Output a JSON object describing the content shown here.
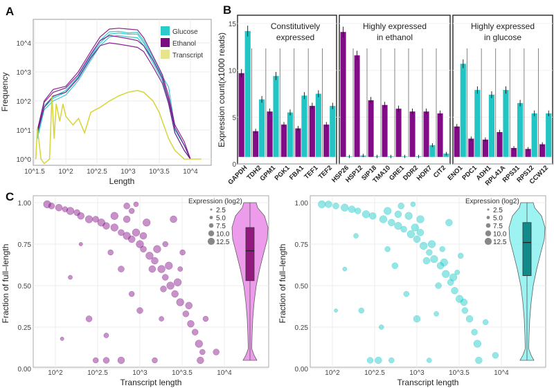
{
  "colors": {
    "glucose": "#22c4c4",
    "ethanol": "#800d86",
    "transcript": "#d4d12c",
    "glucose_legend": "#2ccaca",
    "ethanol_legend": "#7a0e80",
    "transcript_legend": "#e6e48c"
  },
  "chart_data": [
    {
      "panel": "A",
      "type": "line",
      "xlabel": "Length",
      "ylabel": "Frequency",
      "x_scale": "log",
      "y_scale": "log",
      "xlim": [
        31,
        20000
      ],
      "ylim": [
        0.6,
        60000
      ],
      "x_ticks": [
        "10^1.5",
        "10^2",
        "10^2.5",
        "10^3",
        "10^3.5",
        "10^4"
      ],
      "x_tick_values": [
        31.6,
        100,
        316,
        1000,
        3162,
        10000
      ],
      "y_ticks": [
        "10^0",
        "10^1",
        "10^2",
        "10^3",
        "10^4"
      ],
      "y_tick_values": [
        1,
        10,
        100,
        1000,
        10000
      ],
      "grid": true,
      "legend": {
        "placement": "top-right",
        "entries": [
          "Glucose",
          "Ethanol",
          "Transcript"
        ]
      },
      "x": [
        35,
        45,
        63,
        100,
        158,
        251,
        355,
        501,
        708,
        1000,
        1413,
        1778,
        2512,
        3548,
        4467,
        5623,
        7943,
        10000
      ],
      "series": [
        {
          "name": "Glucose",
          "values": [
            6,
            60,
            125,
            200,
            630,
            3200,
            10000,
            20000,
            22000,
            20000,
            20000,
            10000,
            2500,
            630,
            100,
            10,
            3,
            1
          ]
        },
        {
          "name": "Glucose",
          "values": [
            5,
            50,
            100,
            160,
            500,
            2500,
            8000,
            16000,
            18000,
            16000,
            15000,
            8000,
            2000,
            500,
            80,
            8,
            2,
            1
          ]
        },
        {
          "name": "Glucose",
          "values": [
            7,
            70,
            140,
            230,
            700,
            3600,
            12000,
            24000,
            25000,
            22000,
            23000,
            12000,
            3000,
            700,
            300,
            12,
            3,
            1
          ]
        },
        {
          "name": "Ethanol",
          "values": [
            10,
            100,
            250,
            320,
            1000,
            5000,
            16000,
            30000,
            32000,
            30000,
            28000,
            15000,
            3500,
            800,
            150,
            15,
            4,
            1
          ]
        },
        {
          "name": "Ethanol",
          "values": [
            9,
            90,
            200,
            280,
            800,
            4000,
            12000,
            18000,
            16000,
            14000,
            12000,
            8000,
            2500,
            600,
            110,
            12,
            3,
            1
          ]
        },
        {
          "name": "Ethanol",
          "values": [
            8,
            60,
            150,
            200,
            600,
            3000,
            8000,
            10000,
            9000,
            8000,
            7000,
            5000,
            1500,
            400,
            80,
            8,
            2,
            1
          ]
        },
        {
          "name": "Transcript",
          "x": [
            33,
            35,
            40,
            45,
            55,
            60,
            65,
            70,
            80,
            90,
            100,
            130,
            160,
            200,
            251,
            300,
            355,
            501,
            708,
            1000,
            1413,
            1778,
            2512,
            3162,
            3548,
            4467,
            5623,
            7943,
            10000,
            15000
          ],
          "values": [
            1,
            12,
            1,
            0.7,
            1,
            150,
            5,
            80,
            20,
            80,
            30,
            15,
            25,
            8,
            40,
            50,
            60,
            100,
            150,
            200,
            230,
            200,
            100,
            40,
            20,
            5,
            2,
            1,
            1,
            1
          ]
        }
      ]
    },
    {
      "panel": "B",
      "type": "bar",
      "ylabel": "Expression count(x1000 reads)",
      "ylim": [
        0,
        15.5
      ],
      "y_ticks": [
        0,
        5,
        10,
        15
      ],
      "series_order": [
        "Ethanol",
        "Glucose"
      ],
      "facets": [
        {
          "title": [
            "Constitutively",
            "expressed"
          ],
          "genes": [
            {
              "gene": "GAPDH",
              "ethanol": 9.7,
              "glucose": 14.2
            },
            {
              "gene": "TDH2",
              "ethanol": 3.5,
              "glucose": 6.9
            },
            {
              "gene": "GPM1",
              "ethanol": 5.6,
              "glucose": 9.4
            },
            {
              "gene": "PGK1",
              "ethanol": 4.2,
              "glucose": 5.5
            },
            {
              "gene": "FBA1",
              "ethanol": 3.8,
              "glucose": 7.3
            },
            {
              "gene": "TEF1",
              "ethanol": 6.2,
              "glucose": 7.5
            },
            {
              "gene": "TEF2",
              "ethanol": 4.2,
              "glucose": 6.2
            }
          ]
        },
        {
          "title": [
            "Highly expressed",
            "in ethanol"
          ],
          "genes": [
            {
              "gene": "HSP26",
              "ethanol": 14.1,
              "glucose": 0.8
            },
            {
              "gene": "HSP12",
              "ethanol": 11.6,
              "glucose": 0.9
            },
            {
              "gene": "SIP18",
              "ethanol": 6.8,
              "glucose": 0.8
            },
            {
              "gene": "TMA10",
              "ethanol": 6.3,
              "glucose": 0.8
            },
            {
              "gene": "GRE1",
              "ethanol": 5.9,
              "glucose": 0.8
            },
            {
              "gene": "DDR2",
              "ethanol": 5.6,
              "glucose": 0.8
            },
            {
              "gene": "HOR7",
              "ethanol": 5.6,
              "glucose": 2.0
            },
            {
              "gene": "CIT2",
              "ethanol": 5.4,
              "glucose": 1.1
            }
          ]
        },
        {
          "title": [
            "Highly expressed",
            "in glucose"
          ],
          "genes": [
            {
              "gene": "ENO1",
              "ethanol": 4.0,
              "glucose": 10.7
            },
            {
              "gene": "PDC1",
              "ethanol": 2.7,
              "glucose": 7.9
            },
            {
              "gene": "ADH1",
              "ethanol": 2.6,
              "glucose": 7.4
            },
            {
              "gene": "RPL41A",
              "ethanol": 3.4,
              "glucose": 7.9
            },
            {
              "gene": "RPS31",
              "ethanol": 1.7,
              "glucose": 6.5
            },
            {
              "gene": "RPS12",
              "ethanol": 1.6,
              "glucose": 5.4
            },
            {
              "gene": "CCW12",
              "ethanol": 2.1,
              "glucose": 5.4
            }
          ]
        }
      ]
    },
    {
      "panel": "C-ethanol",
      "type": "scatter",
      "xlabel": "Transcript length",
      "ylabel": "Fraction of full–length",
      "x_scale": "log",
      "x_ticks": [
        "10^2",
        "10^2.5",
        "10^3",
        "10^3.5",
        "10^4"
      ],
      "x_tick_values": [
        100,
        316,
        1000,
        3162,
        10000
      ],
      "y_ticks": [
        "0.00",
        "0.25",
        "0.50",
        "0.75",
        "1.00"
      ],
      "y_tick_values": [
        0,
        0.25,
        0.5,
        0.75,
        1
      ],
      "xlim": [
        55,
        30000
      ],
      "ylim": [
        -0.01,
        1.04
      ],
      "grid": true,
      "size_legend": {
        "title": "Expression (log2)",
        "values": [
          "2.5",
          "5.0",
          "7.5",
          "10.0",
          "12.5"
        ],
        "placement": "top-right"
      },
      "violin": {
        "q1": 0.53,
        "median": 0.71,
        "q3": 0.85,
        "min": 0.05,
        "max": 1.0
      },
      "points": [
        [
          80,
          0.99,
          12
        ],
        [
          90,
          0.98,
          10
        ],
        [
          110,
          0.97,
          11
        ],
        [
          130,
          0.96,
          9
        ],
        [
          150,
          0.95,
          12
        ],
        [
          180,
          0.94,
          10
        ],
        [
          200,
          0.92,
          11
        ],
        [
          250,
          0.9,
          12
        ],
        [
          300,
          0.9,
          10
        ],
        [
          350,
          0.88,
          12
        ],
        [
          400,
          0.86,
          11
        ],
        [
          500,
          0.85,
          12
        ],
        [
          600,
          0.82,
          10
        ],
        [
          700,
          0.8,
          12
        ],
        [
          800,
          0.78,
          11
        ],
        [
          1000,
          0.75,
          12
        ],
        [
          1100,
          0.72,
          10
        ],
        [
          1300,
          0.68,
          12
        ],
        [
          1500,
          0.65,
          11
        ],
        [
          1800,
          0.6,
          12
        ],
        [
          2000,
          0.55,
          10
        ],
        [
          2300,
          0.5,
          12
        ],
        [
          2600,
          0.45,
          11
        ],
        [
          3000,
          0.4,
          12
        ],
        [
          3500,
          0.33,
          10
        ],
        [
          4000,
          0.27,
          11
        ],
        [
          4500,
          0.22,
          10
        ],
        [
          5000,
          0.15,
          12
        ],
        [
          5500,
          0.1,
          9
        ],
        [
          5200,
          0.05,
          11
        ],
        [
          800,
          0.95,
          9
        ],
        [
          900,
          0.99,
          8
        ],
        [
          700,
          0.98,
          10
        ],
        [
          300,
          0.05,
          9
        ],
        [
          400,
          0.05,
          10
        ],
        [
          600,
          0.05,
          11
        ],
        [
          1500,
          0.05,
          9
        ],
        [
          250,
          0.3,
          10
        ],
        [
          400,
          0.2,
          8
        ],
        [
          150,
          0.55,
          7
        ],
        [
          120,
          0.18,
          6
        ],
        [
          1200,
          0.88,
          12
        ],
        [
          2000,
          0.75,
          9
        ],
        [
          3000,
          0.6,
          8
        ],
        [
          600,
          0.6,
          10
        ],
        [
          450,
          0.7,
          9
        ],
        [
          1000,
          0.35,
          10
        ],
        [
          200,
          0.75,
          6
        ],
        [
          800,
          0.45,
          9
        ],
        [
          1800,
          0.3,
          8
        ],
        [
          8000,
          0.1,
          10
        ],
        [
          6000,
          0.3,
          9
        ],
        [
          2500,
          0.9,
          11
        ],
        [
          3200,
          0.7,
          9
        ],
        [
          1600,
          0.72,
          12
        ],
        [
          900,
          0.82,
          12
        ],
        [
          1400,
          0.6,
          11
        ],
        [
          2200,
          0.62,
          12
        ],
        [
          2800,
          0.52,
          12
        ],
        [
          3800,
          0.38,
          11
        ],
        [
          700,
          0.9,
          11
        ],
        [
          500,
          0.92,
          12
        ],
        [
          1100,
          0.8,
          11
        ],
        [
          1900,
          0.48,
          10
        ]
      ]
    },
    {
      "panel": "C-glucose",
      "type": "scatter",
      "xlabel": "Transcript length",
      "ylabel": "Fraction of full–length",
      "x_scale": "log",
      "x_ticks": [
        "10^2",
        "10^2.5",
        "10^3",
        "10^3.5",
        "10^4"
      ],
      "x_tick_values": [
        100,
        316,
        1000,
        3162,
        10000
      ],
      "y_ticks": [
        "0.00",
        "0.25",
        "0.50",
        "0.75",
        "1.00"
      ],
      "y_tick_values": [
        0,
        0.25,
        0.5,
        0.75,
        1
      ],
      "xlim": [
        55,
        30000
      ],
      "ylim": [
        -0.01,
        1.04
      ],
      "grid": true,
      "size_legend": {
        "title": "Expression (log2)",
        "values": [
          "2.5",
          "5.0",
          "7.5",
          "10.0",
          "12.5"
        ],
        "placement": "top-right"
      },
      "violin": {
        "q1": 0.56,
        "median": 0.76,
        "q3": 0.88,
        "min": 0.05,
        "max": 1.0
      },
      "points": [
        [
          75,
          0.99,
          12
        ],
        [
          90,
          0.99,
          11
        ],
        [
          110,
          0.98,
          10
        ],
        [
          140,
          0.97,
          12
        ],
        [
          170,
          0.96,
          11
        ],
        [
          200,
          0.95,
          10
        ],
        [
          250,
          0.93,
          12
        ],
        [
          300,
          0.92,
          11
        ],
        [
          400,
          0.9,
          12
        ],
        [
          500,
          0.88,
          11
        ],
        [
          600,
          0.86,
          12
        ],
        [
          700,
          0.84,
          10
        ],
        [
          850,
          0.81,
          12
        ],
        [
          1000,
          0.78,
          11
        ],
        [
          1200,
          0.74,
          12
        ],
        [
          1400,
          0.7,
          10
        ],
        [
          1600,
          0.66,
          12
        ],
        [
          1900,
          0.62,
          11
        ],
        [
          2200,
          0.57,
          12
        ],
        [
          2500,
          0.52,
          10
        ],
        [
          2800,
          0.47,
          11
        ],
        [
          3200,
          0.42,
          12
        ],
        [
          3700,
          0.35,
          10
        ],
        [
          4200,
          0.3,
          11
        ],
        [
          4800,
          0.22,
          10
        ],
        [
          5200,
          0.15,
          12
        ],
        [
          5400,
          0.05,
          11
        ],
        [
          800,
          0.92,
          12
        ],
        [
          900,
          0.99,
          8
        ],
        [
          650,
          0.98,
          10
        ],
        [
          280,
          0.05,
          10
        ],
        [
          350,
          0.05,
          11
        ],
        [
          500,
          0.05,
          9
        ],
        [
          1400,
          0.05,
          8
        ],
        [
          220,
          0.35,
          9
        ],
        [
          380,
          0.25,
          8
        ],
        [
          140,
          0.6,
          7
        ],
        [
          110,
          0.35,
          6
        ],
        [
          1100,
          0.9,
          12
        ],
        [
          2000,
          0.72,
          9
        ],
        [
          3000,
          0.58,
          8
        ],
        [
          550,
          0.62,
          10
        ],
        [
          450,
          0.72,
          9
        ],
        [
          1000,
          0.3,
          11
        ],
        [
          190,
          0.8,
          8
        ],
        [
          750,
          0.45,
          9
        ],
        [
          1700,
          0.33,
          8
        ],
        [
          8500,
          0.08,
          10
        ],
        [
          6500,
          0.28,
          9
        ],
        [
          2400,
          0.88,
          11
        ],
        [
          3300,
          0.68,
          9
        ],
        [
          1500,
          0.75,
          12
        ],
        [
          950,
          0.85,
          12
        ],
        [
          1300,
          0.65,
          11
        ],
        [
          2100,
          0.64,
          12
        ],
        [
          2700,
          0.55,
          12
        ],
        [
          3600,
          0.4,
          11
        ],
        [
          600,
          0.93,
          11
        ],
        [
          450,
          0.95,
          12
        ],
        [
          1100,
          0.82,
          11
        ],
        [
          1800,
          0.5,
          10
        ]
      ]
    }
  ]
}
